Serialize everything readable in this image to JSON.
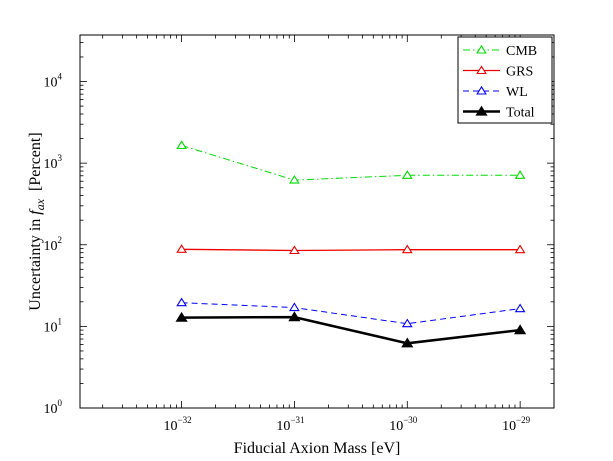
{
  "chart_data": {
    "type": "line",
    "title": "",
    "xlabel": "Fiducial Axion Mass [eV]",
    "ylabel_prefix": "Uncertainty in ",
    "ylabel_symbol": "f",
    "ylabel_subscript": "ax",
    "ylabel_suffix": "[Percent]",
    "x_scale": "log",
    "y_scale": "log",
    "x_exponent_range": [
      -32.9,
      -28.7
    ],
    "y_exponent_range": [
      0,
      4.57
    ],
    "x_tick_exponents": [
      -32,
      -31,
      -30,
      -29
    ],
    "y_tick_exponents": [
      0,
      1,
      2,
      3,
      4
    ],
    "tick_base": "10",
    "x": [
      1e-32,
      1e-31,
      1e-30,
      1e-29
    ],
    "grid": false,
    "legend_position": "top-right",
    "series": [
      {
        "name": "CMB",
        "values": [
          1650,
          620,
          710,
          710
        ],
        "color": "#00dd00",
        "dash": "dashdot",
        "marker": "open-triangle",
        "width": 1
      },
      {
        "name": "GRS",
        "values": [
          88,
          85,
          87,
          87
        ],
        "color": "#ee0000",
        "dash": "solid",
        "marker": "open-triangle",
        "width": 1.3
      },
      {
        "name": "WL",
        "values": [
          19.5,
          17,
          10.8,
          16.5
        ],
        "color": "#0000ff",
        "dash": "dashed",
        "marker": "open-triangle",
        "width": 1
      },
      {
        "name": "Total",
        "values": [
          12.8,
          13,
          6.2,
          9
        ],
        "color": "#000000",
        "dash": "solid",
        "marker": "filled-triangle",
        "width": 2.5
      }
    ]
  }
}
